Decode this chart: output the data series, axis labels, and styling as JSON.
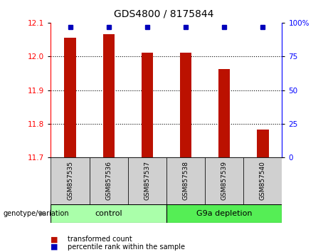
{
  "title": "GDS4800 / 8175844",
  "samples": [
    "GSM857535",
    "GSM857536",
    "GSM857537",
    "GSM857538",
    "GSM857539",
    "GSM857540"
  ],
  "bar_values": [
    12.055,
    12.065,
    12.01,
    12.01,
    11.962,
    11.782
  ],
  "bar_bottom": 11.7,
  "bar_color": "#bb1100",
  "percentile_values": [
    97,
    97,
    97,
    97,
    97,
    97
  ],
  "percentile_color": "#0000bb",
  "ylim_left": [
    11.7,
    12.1
  ],
  "ylim_right": [
    0,
    100
  ],
  "yticks_left": [
    11.7,
    11.8,
    11.9,
    12.0,
    12.1
  ],
  "yticks_right": [
    0,
    25,
    50,
    75,
    100
  ],
  "ytick_labels_right": [
    "0",
    "25",
    "50",
    "75",
    "100%"
  ],
  "grid_values": [
    11.8,
    11.9,
    12.0
  ],
  "groups": [
    {
      "label": "control",
      "indices": [
        0,
        1,
        2
      ],
      "color": "#aaffaa"
    },
    {
      "label": "G9a depletion",
      "indices": [
        3,
        4,
        5
      ],
      "color": "#55ee55"
    }
  ],
  "legend_items": [
    {
      "label": "transformed count",
      "color": "#bb1100"
    },
    {
      "label": "percentile rank within the sample",
      "color": "#0000bb"
    }
  ],
  "bar_width": 0.3,
  "xlim": [
    -0.5,
    5.5
  ]
}
